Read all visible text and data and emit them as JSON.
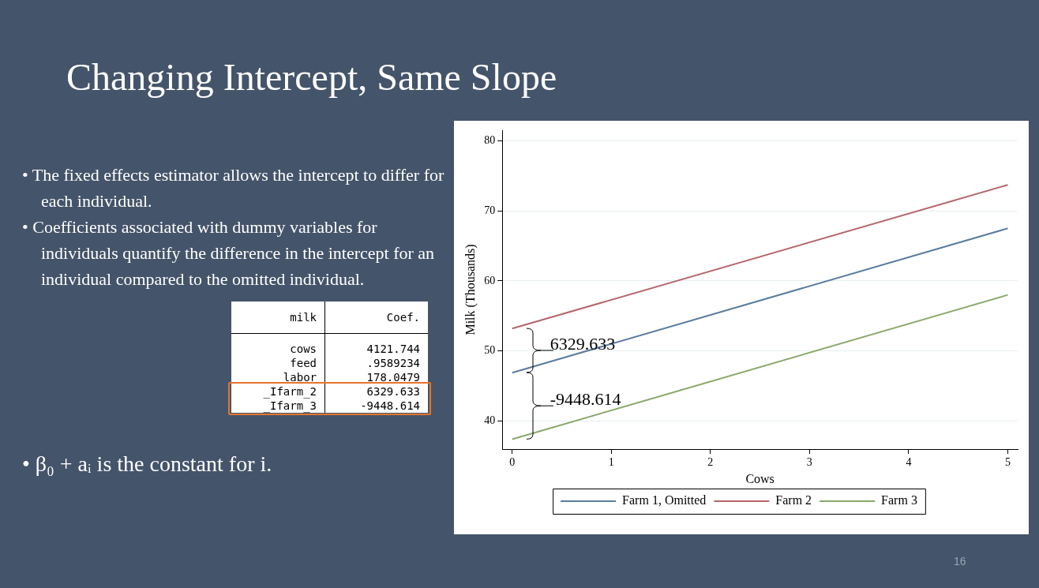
{
  "chart_data": {
    "type": "line",
    "title": "Changing Intercept, Same Slope",
    "xlabel": "Cows",
    "ylabel": "Milk (Thousands)",
    "x": [
      0,
      5
    ],
    "series": [
      {
        "name": "Farm 1, Omitted",
        "color": "#5a7c9e",
        "values": [
          46.9,
          67.5
        ]
      },
      {
        "name": "Farm 2",
        "color": "#b5666b",
        "values": [
          53.2,
          73.7
        ]
      },
      {
        "name": "Farm 3",
        "color": "#89a86a",
        "values": [
          37.4,
          58.0
        ]
      }
    ],
    "xlim": [
      -0.1,
      5.1
    ],
    "xticks": [
      0,
      1,
      2,
      3,
      4,
      5
    ],
    "ylim": [
      36,
      81.5
    ],
    "yticks": [
      40,
      50,
      60,
      70,
      80
    ],
    "grid": "y",
    "legend": "bottom",
    "marker": "none",
    "line_style": "solid",
    "annotations": [
      "• The fixed effects estimator allows the intercept to differ for each individual.",
      "• Coefficients associated with dummy variables for individuals quantify the difference in the intercept for an individual compared to the omitted individual.",
      "• β₀ + aᵢ is the constant for i.",
      "milk",
      "Coef.",
      "cows",
      "4121.744",
      "feed",
      ".9589234",
      "labor",
      "178.0479",
      "_Ifarm_2",
      "6329.633",
      "_Ifarm_3",
      "-9448.614",
      "16",
      "6329.633",
      "-9448.614"
    ]
  }
}
